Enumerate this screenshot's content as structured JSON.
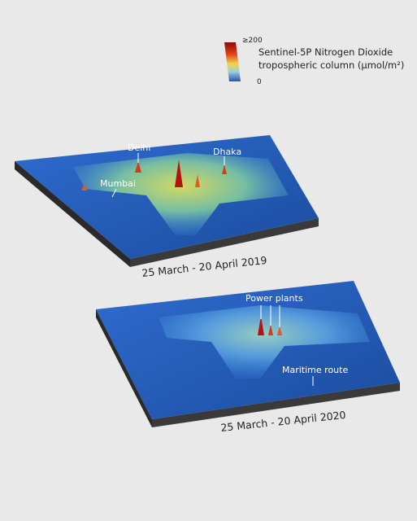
{
  "legend": {
    "max_label": "≥200",
    "min_label": "0",
    "title_lines": [
      "Sentinel-5P Nitrogen Dioxide",
      "tropospheric column (μmol/m²)"
    ]
  },
  "panels": [
    {
      "date": "25 March - 20 April 2019",
      "labels": [
        "Delhi",
        "Dhaka",
        "Mumbai"
      ]
    },
    {
      "date": "25 March - 20 April 2020",
      "labels": [
        "Power plants",
        "Maritime route"
      ]
    }
  ]
}
